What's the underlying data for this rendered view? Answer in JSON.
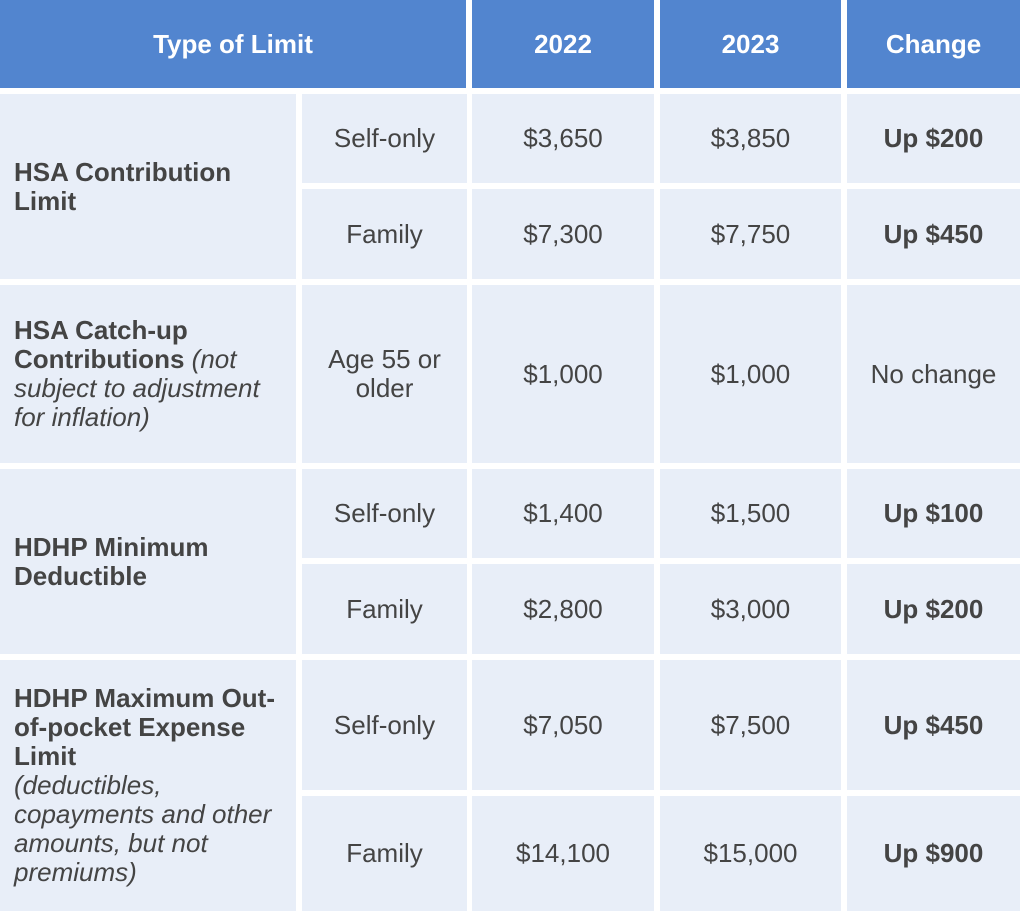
{
  "header": {
    "type_of_limit": "Type of Limit",
    "year1": "2022",
    "year2": "2023",
    "change": "Change"
  },
  "groups": [
    {
      "title": "HSA Contribution Limit",
      "note": "",
      "rows": [
        {
          "category": "Self-only",
          "v2022": "$3,650",
          "v2023": "$3,850",
          "change": "Up $200"
        },
        {
          "category": "Family",
          "v2022": "$7,300",
          "v2023": "$7,750",
          "change": "Up $450"
        }
      ]
    },
    {
      "title": "HSA Catch-up Contributions",
      "note": "(not subject to adjustment for inflation)",
      "rows": [
        {
          "category": "Age 55 or older",
          "v2022": "$1,000",
          "v2023": "$1,000",
          "change": "No change"
        }
      ]
    },
    {
      "title": "HDHP Minimum Deductible",
      "note": "",
      "rows": [
        {
          "category": "Self-only",
          "v2022": "$1,400",
          "v2023": "$1,500",
          "change": "Up $100"
        },
        {
          "category": "Family",
          "v2022": "$2,800",
          "v2023": "$3,000",
          "change": "Up $200"
        }
      ]
    },
    {
      "title": "HDHP Maximum Out-of-pocket Expense Limit",
      "note": "(deductibles, copayments and other amounts, but not premiums)",
      "rows": [
        {
          "category": "Self-only",
          "v2022": "$7,050",
          "v2023": "$7,500",
          "change": "Up $450"
        },
        {
          "category": "Family",
          "v2022": "$14,100",
          "v2023": "$15,000",
          "change": "Up $900"
        }
      ]
    }
  ],
  "colors": {
    "header_bg": "#5285cf",
    "cell_bg": "#e8eef8",
    "text": "#444444"
  }
}
